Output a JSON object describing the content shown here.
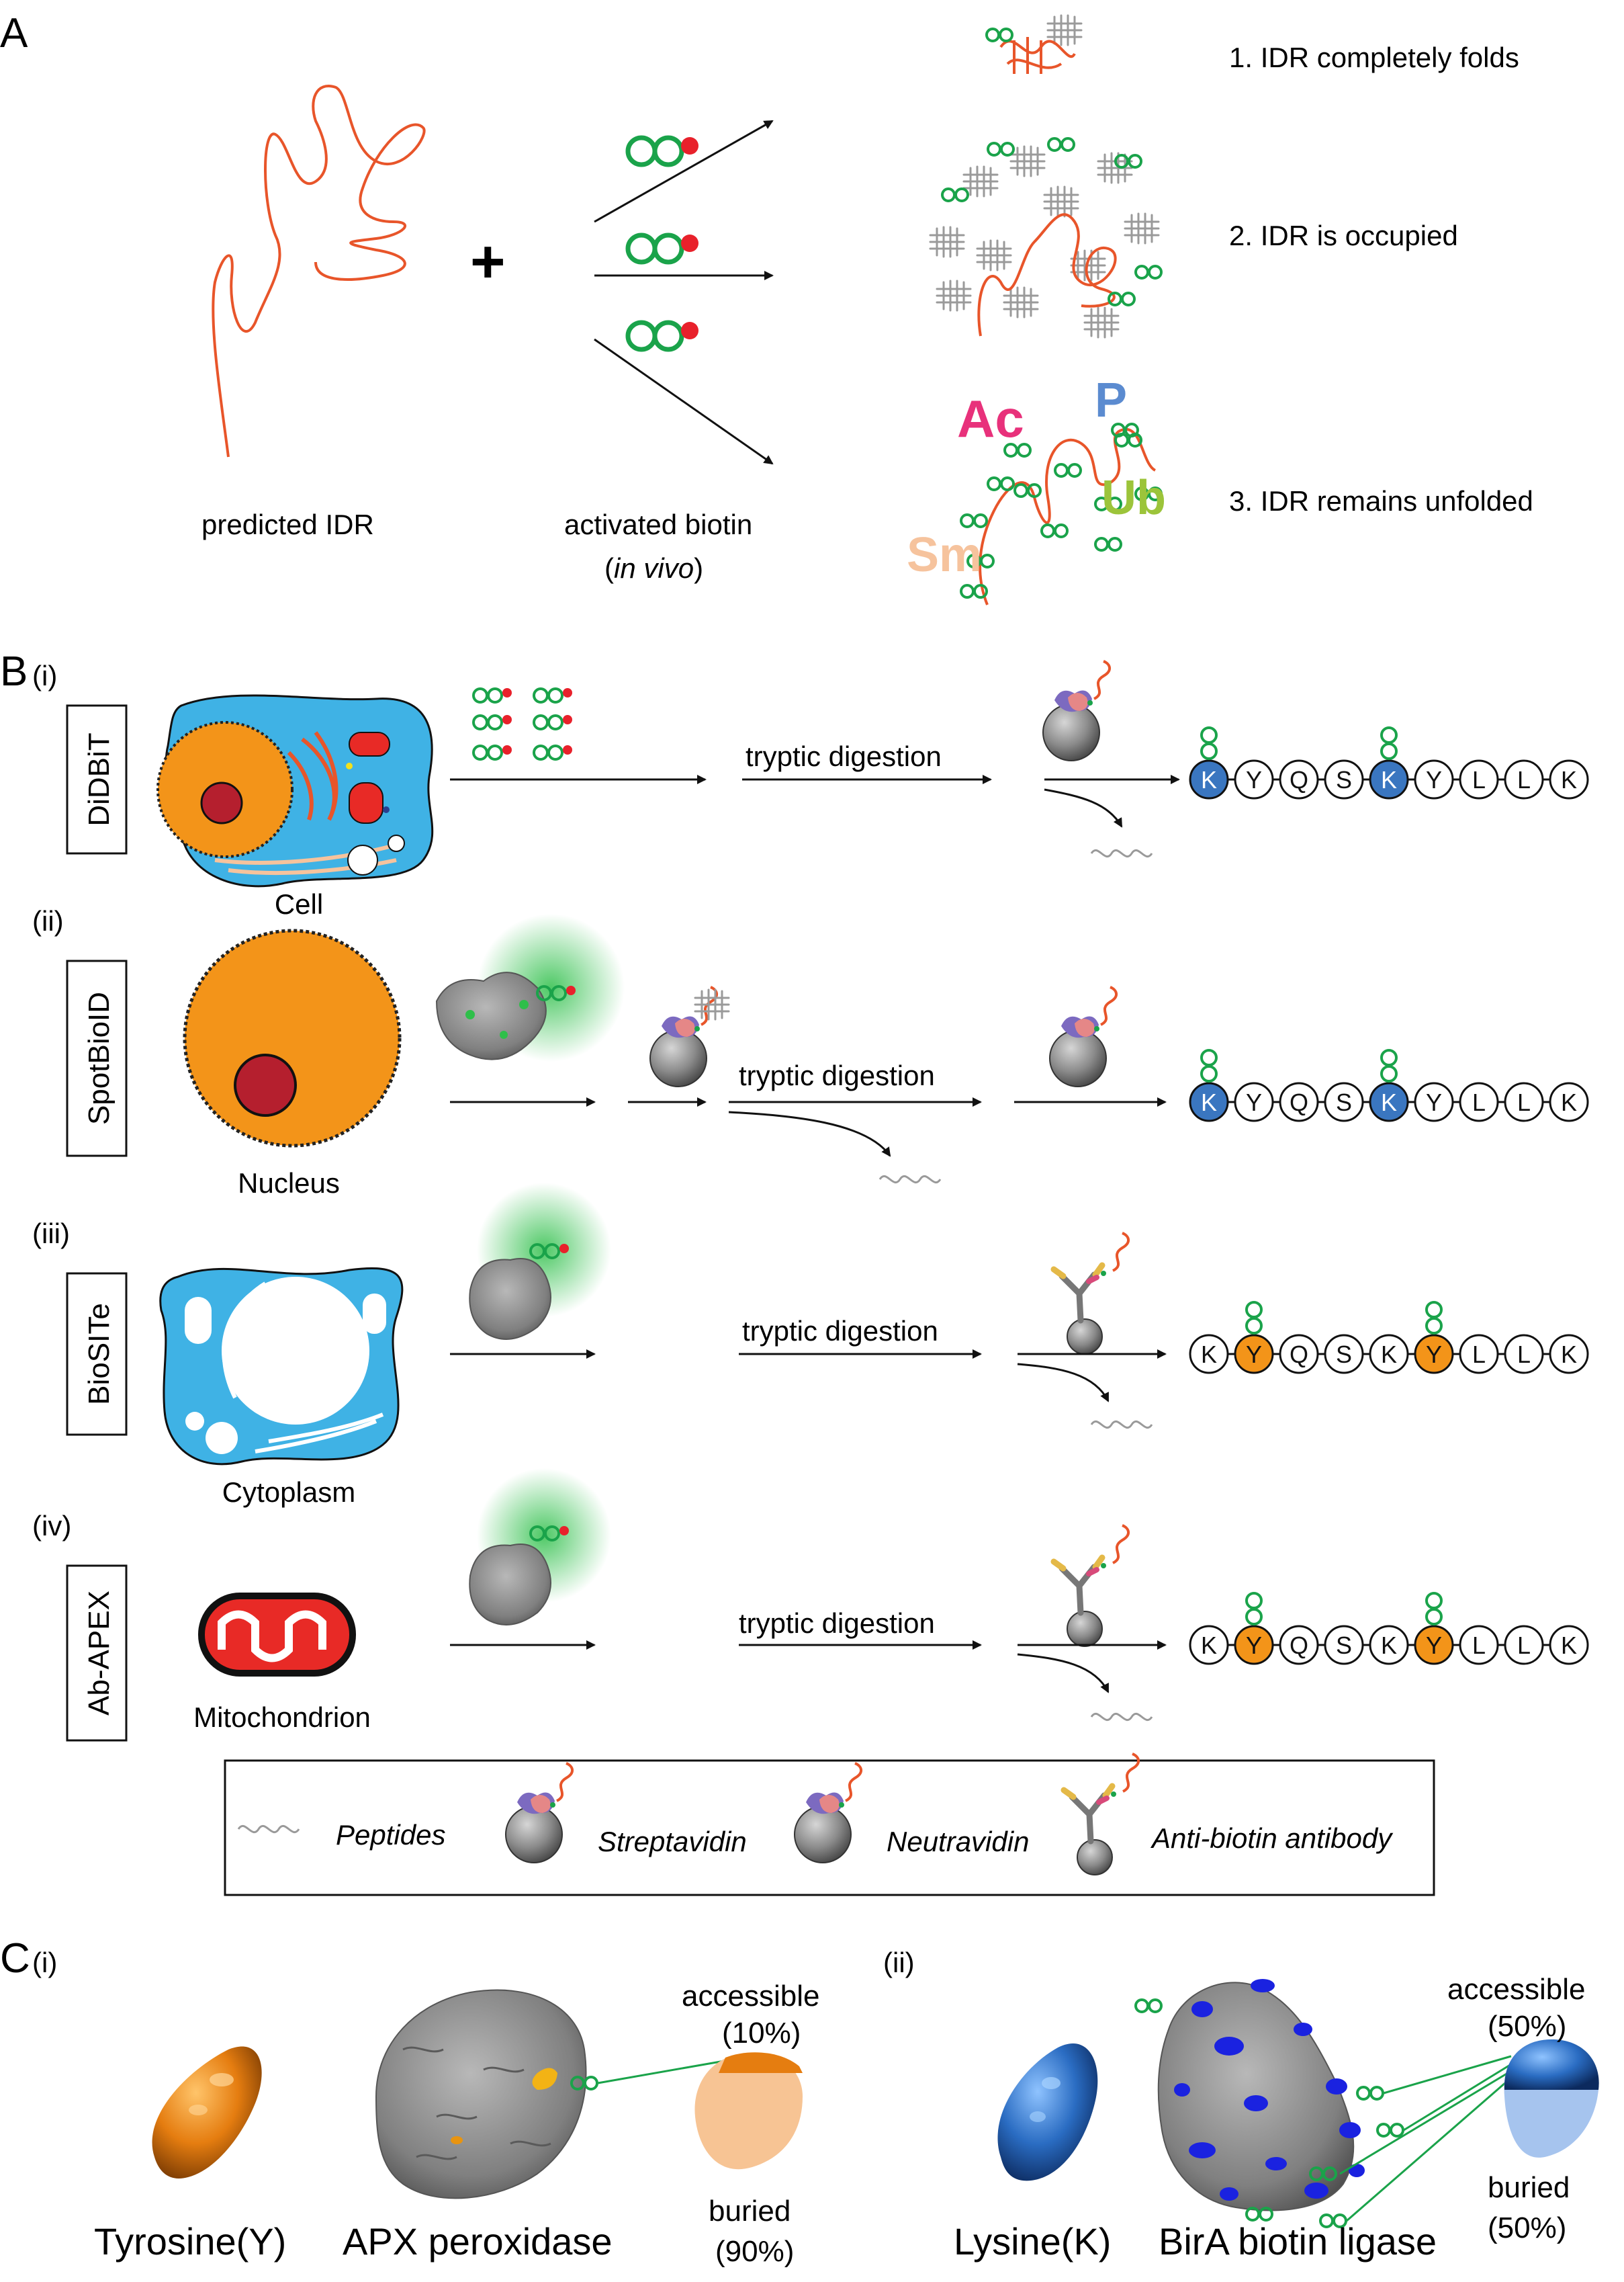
{
  "panel_a": {
    "label": "A",
    "idr_label": "predicted IDR",
    "plus": "+",
    "biotin_label": "activated biotin",
    "biotin_paren_open": "(",
    "biotin_italic": "in vivo",
    "biotin_paren_close": ")",
    "outcomes": [
      "1. IDR completely folds",
      "2. IDR is occupied",
      "3. IDR remains unfolded"
    ],
    "ptm_labels": {
      "ac": "Ac",
      "p": "P",
      "ub": "Ub",
      "sm": "Sm"
    }
  },
  "panel_b": {
    "label": "B",
    "rows": [
      {
        "numeral": "(i)",
        "method": "DiDBiT",
        "compartment": "Cell",
        "step": "tryptic digestion",
        "peptide": [
          "K",
          "Y",
          "Q",
          "S",
          "K",
          "Y",
          "L",
          "L",
          "K"
        ],
        "biotinylated": [
          0,
          4
        ]
      },
      {
        "numeral": "(ii)",
        "method": "SpotBioID",
        "compartment": "Nucleus",
        "step": "tryptic digestion",
        "peptide": [
          "K",
          "Y",
          "Q",
          "S",
          "K",
          "Y",
          "L",
          "L",
          "K"
        ],
        "biotinylated": [
          0,
          4
        ]
      },
      {
        "numeral": "(iii)",
        "method": "BioSITe",
        "compartment": "Cytoplasm",
        "step": "tryptic digestion",
        "peptide": [
          "K",
          "Y",
          "Q",
          "S",
          "K",
          "Y",
          "L",
          "L",
          "K"
        ],
        "biotinylated": [
          1,
          5
        ]
      },
      {
        "numeral": "(iv)",
        "method": "Ab-APEX",
        "compartment": "Mitochondrion",
        "step": "tryptic digestion",
        "peptide": [
          "K",
          "Y",
          "Q",
          "S",
          "K",
          "Y",
          "L",
          "L",
          "K"
        ],
        "biotinylated": [
          1,
          5
        ]
      }
    ],
    "legend": {
      "peptides": "Peptides",
      "streptavidin": "Streptavidin",
      "neutravidin": "Neutravidin",
      "antibody": "Anti-biotin antibody"
    }
  },
  "panel_c": {
    "label": "C",
    "sub_i": "(i)",
    "sub_ii": "(ii)",
    "tyrosine": "Tyrosine(Y)",
    "apx": "APX peroxidase",
    "tyr_accessible": "accessible",
    "tyr_accessible_pct": "(10%)",
    "tyr_buried": "buried",
    "tyr_buried_pct": "(90%)",
    "lysine": "Lysine(K)",
    "bira": "BirA biotin ligase",
    "lys_accessible": "accessible",
    "lys_accessible_pct": "(50%)",
    "lys_buried": "buried",
    "lys_buried_pct": "(50%)"
  },
  "colors": {
    "idr": "#e8552a",
    "biotin": "#1aa34a",
    "activated": "#e8212b",
    "cell": "#3fb2e5",
    "nucleus": "#f39419",
    "nucleolus": "#b51f2e",
    "lysine": "#3a76c0",
    "tyrosine": "#f39419",
    "mito": "#e82a26",
    "ac": "#e8317b",
    "p": "#5b8bd0",
    "ub": "#9cc43a",
    "sm": "#f6c39d"
  }
}
